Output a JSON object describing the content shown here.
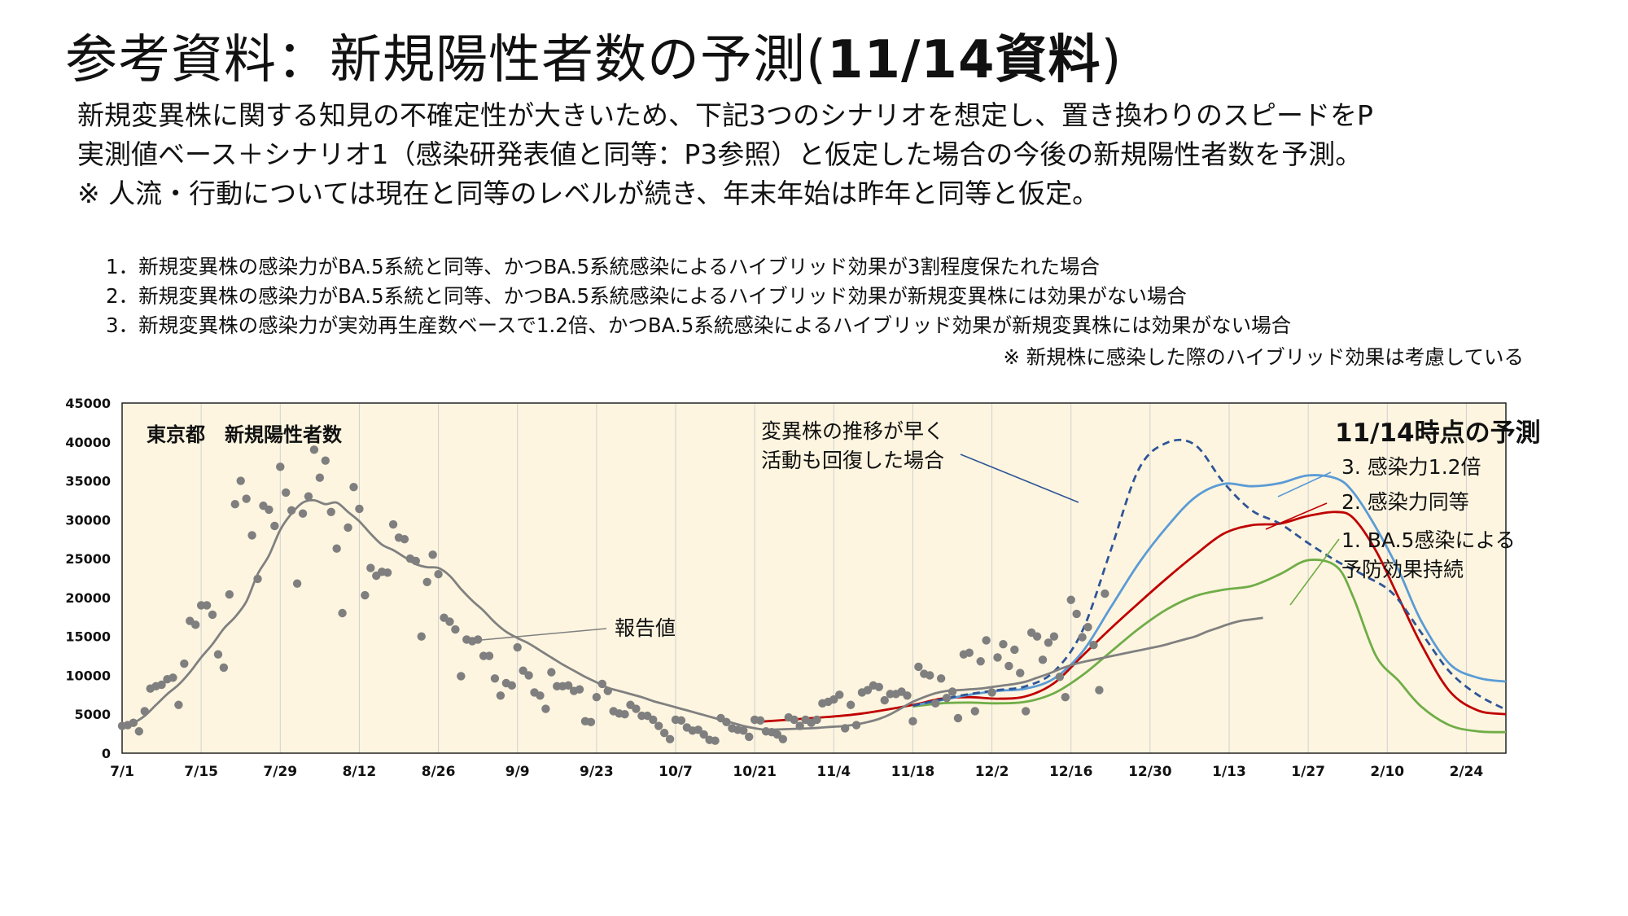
{
  "title_main": "参考資料：新規陽性者数の予測(",
  "title_bold": "11/14資料",
  "title_end": ")",
  "intro_lines": [
    "新規変異株に関する知見の不確定性が大きいため、下記3つのシナリオを想定し、置き換わりのスピードをP",
    "実測値ベース＋シナリオ1（感染研発表値と同等：P3参照）と仮定した場合の今後の新規陽性者数を予測。",
    "※ 人流・行動については現在と同等のレベルが続き、年末年始は昨年と同等と仮定。"
  ],
  "scenarios": [
    "1．新規変異株の感染力がBA.5系統と同等、かつBA.5系統感染によるハイブリッド効果が3割程度保たれた場合",
    "2．新規変異株の感染力がBA.5系統と同等、かつBA.5系統感染によるハイブリッド効果が新規変異株には効果がない場合",
    "3．新規変異株の感染力が実効再生産数ベースで1.2倍、かつBA.5系統感染によるハイブリッド効果が新規変異株には効果がない場合"
  ],
  "scenario_note": "※ 新規株に感染した際のハイブリッド効果は考慮している",
  "colors": {
    "background": "#fdf5e0",
    "reported": "#808080",
    "dots": "#7f7f7f",
    "scenario1": "#70ad47",
    "scenario2": "#c00000",
    "scenario3": "#5b9bd5",
    "dashed": "#2f5597"
  },
  "chart_data": {
    "type": "line",
    "title": "東京都　新規陽性者数",
    "corner_label": "11/14時点の予測",
    "x_tick_labels": [
      "7/1",
      "7/15",
      "7/29",
      "8/12",
      "8/26",
      "9/9",
      "9/23",
      "10/7",
      "10/21",
      "11/4",
      "11/18",
      "12/2",
      "12/16",
      "12/30",
      "1/13",
      "1/27",
      "2/10",
      "2/24"
    ],
    "x_day_range": [
      0,
      245
    ],
    "ylim": [
      0,
      45000
    ],
    "y_ticks": [
      0,
      5000,
      10000,
      15000,
      20000,
      25000,
      30000,
      35000,
      40000,
      45000
    ],
    "grid": "vertical",
    "annotations": {
      "reported": "報告値",
      "dashed_1": "変異株の推移が早く",
      "dashed_2": "活動も回復した場合",
      "s3": "3. 感染力1.2倍",
      "s2": "2. 感染力同等",
      "s1_1": "1. BA.5感染による",
      "s1_2": "予防効果持続"
    },
    "series": [
      {
        "name": "報告値",
        "key": "reported",
        "style": "line",
        "x": [
          0,
          2,
          4,
          6,
          8,
          10,
          12,
          14,
          16,
          18,
          20,
          22,
          24,
          26,
          28,
          30,
          32,
          34,
          36,
          38,
          40,
          42,
          44,
          46,
          48,
          50,
          52,
          54,
          56,
          58,
          60,
          62,
          64,
          66,
          68,
          70,
          72,
          74,
          76,
          78,
          80,
          82,
          84,
          86,
          88,
          90,
          92,
          94,
          96,
          98,
          100,
          102,
          104,
          106,
          108,
          110,
          112,
          114,
          116,
          118,
          120,
          122,
          124,
          126,
          128,
          130,
          132,
          134,
          136,
          138,
          140,
          142,
          144,
          146,
          148,
          150,
          152,
          154,
          156,
          158,
          160,
          162,
          164,
          166,
          168,
          170,
          172,
          174,
          176,
          178,
          180,
          182,
          184,
          186,
          188,
          190,
          192,
          194,
          196,
          198,
          200,
          202
        ],
        "y": [
          3600,
          3900,
          4800,
          6200,
          7600,
          8800,
          10400,
          12300,
          14000,
          16000,
          17500,
          19500,
          23000,
          25400,
          28700,
          30800,
          32200,
          32500,
          32000,
          32200,
          31000,
          29800,
          28200,
          26800,
          26100,
          25200,
          24300,
          23900,
          23800,
          22800,
          21100,
          19600,
          18300,
          16800,
          15600,
          14800,
          14100,
          13200,
          12300,
          11400,
          10600,
          9800,
          9100,
          8400,
          8000,
          7600,
          7200,
          6700,
          6300,
          5900,
          5500,
          5100,
          4700,
          4300,
          3900,
          3500,
          3200,
          3000,
          3050,
          3100,
          3150,
          3200,
          3300,
          3400,
          3500,
          3700,
          4000,
          4400,
          5000,
          5800,
          6600,
          7200,
          7700,
          8000,
          8100,
          8200,
          8300,
          8500,
          8700,
          8900,
          9200,
          9700,
          10200,
          10800,
          11300,
          11700,
          12000,
          12300,
          12600,
          12900,
          13200,
          13500,
          13800,
          14200,
          14600,
          15000,
          15600,
          16100,
          16600,
          17000,
          17200,
          17400
        ]
      },
      {
        "name": "3. 感染力1.2倍",
        "key": "scenario3",
        "style": "line",
        "x": [
          140,
          145,
          150,
          155,
          160,
          165,
          170,
          175,
          180,
          185,
          190,
          195,
          200,
          205,
          210,
          215,
          218,
          222,
          226,
          230,
          235,
          240,
          245
        ],
        "y": [
          6100,
          6800,
          7500,
          8000,
          8300,
          9600,
          13000,
          18700,
          24400,
          29100,
          32900,
          34600,
          34300,
          34700,
          35700,
          35300,
          33500,
          29000,
          23500,
          17000,
          11500,
          9700,
          9200
        ]
      },
      {
        "name": "2. 感染力同等",
        "key": "scenario2",
        "style": "line",
        "x": [
          112,
          120,
          130,
          140,
          145,
          150,
          155,
          160,
          165,
          170,
          175,
          180,
          185,
          190,
          195,
          200,
          205,
          210,
          215,
          218,
          222,
          226,
          230,
          235,
          240,
          245
        ],
        "y": [
          4000,
          4400,
          5000,
          6200,
          7000,
          7200,
          7000,
          7300,
          9000,
          12500,
          16000,
          19300,
          22500,
          25500,
          28200,
          29300,
          29500,
          30500,
          31000,
          30200,
          26000,
          20000,
          14000,
          8000,
          5500,
          5000
        ]
      },
      {
        "name": "1. BA.5感染による予防効果持続",
        "key": "scenario1",
        "style": "line",
        "x": [
          140,
          145,
          150,
          155,
          160,
          165,
          170,
          175,
          180,
          185,
          190,
          195,
          200,
          205,
          210,
          215,
          218,
          222,
          226,
          230,
          235,
          240,
          245
        ],
        "y": [
          6000,
          6400,
          6500,
          6400,
          6600,
          7700,
          10000,
          13000,
          16000,
          18500,
          20200,
          21000,
          21500,
          23000,
          24800,
          24000,
          20000,
          12500,
          9300,
          6000,
          3600,
          2800,
          2700
        ]
      },
      {
        "name": "変異株の推移が早く活動も回復した場合",
        "key": "dashed",
        "style": "dashed",
        "x": [
          140,
          145,
          150,
          155,
          160,
          165,
          170,
          175,
          180,
          185,
          190,
          195,
          200,
          205,
          210,
          215,
          220,
          225,
          230,
          235,
          240,
          245
        ],
        "y": [
          6100,
          6900,
          7600,
          8100,
          8600,
          10500,
          15700,
          26000,
          36500,
          39900,
          39600,
          34800,
          31200,
          29500,
          27000,
          24700,
          22800,
          20500,
          15500,
          10500,
          7500,
          5600
        ]
      },
      {
        "name": "報告値（日次）",
        "key": "dots",
        "style": "scatter",
        "x": [
          0,
          1,
          2,
          3,
          4,
          5,
          6,
          7,
          8,
          9,
          10,
          11,
          12,
          13,
          14,
          15,
          16,
          17,
          18,
          19,
          20,
          21,
          22,
          23,
          24,
          25,
          26,
          27,
          28,
          29,
          30,
          31,
          32,
          33,
          34,
          35,
          36,
          37,
          38,
          39,
          40,
          41,
          42,
          43,
          44,
          45,
          46,
          47,
          48,
          49,
          50,
          51,
          52,
          53,
          54,
          55,
          56,
          57,
          58,
          59,
          60,
          61,
          62,
          63,
          64,
          65,
          66,
          67,
          68,
          69,
          70,
          71,
          72,
          73,
          74,
          75,
          76,
          77,
          78,
          79,
          80,
          81,
          82,
          83,
          84,
          85,
          86,
          87,
          88,
          89,
          90,
          91,
          92,
          93,
          94,
          95,
          96,
          97,
          98,
          99,
          100,
          101,
          102,
          103,
          104,
          105,
          106,
          107,
          108,
          109,
          110,
          111,
          112,
          113,
          114,
          115,
          116,
          117,
          118,
          119,
          120,
          121,
          122,
          123,
          124,
          125,
          126,
          127,
          128,
          129,
          130,
          131,
          132,
          133,
          134,
          135,
          136,
          137,
          138,
          139,
          140,
          141,
          142,
          143,
          144,
          145,
          146,
          147,
          148,
          149,
          150,
          151,
          152,
          153,
          154,
          155,
          156,
          157,
          158,
          159,
          160,
          161,
          162,
          163,
          164,
          165,
          166,
          167,
          168,
          169,
          170,
          171,
          172,
          173,
          174
        ],
        "y": [
          3500,
          3600,
          3900,
          2800,
          5400,
          8300,
          8600,
          8800,
          9500,
          9700,
          6200,
          11500,
          17000,
          16500,
          19000,
          19000,
          17800,
          12700,
          11000,
          20400,
          32000,
          35000,
          32700,
          28000,
          22400,
          31800,
          31300,
          29200,
          36800,
          33500,
          31200,
          21800,
          30800,
          33000,
          39000,
          35400,
          37600,
          31000,
          26300,
          18000,
          29000,
          34200,
          31400,
          20300,
          23800,
          22800,
          23300,
          23200,
          29400,
          27700,
          27500,
          25000,
          24700,
          15000,
          22000,
          25500,
          23000,
          17400,
          16900,
          15900,
          9900,
          14600,
          14400,
          14600,
          12500,
          12500,
          9600,
          7400,
          9000,
          8700,
          13600,
          10600,
          10000,
          7800,
          7400,
          5700,
          10400,
          8600,
          8600,
          8700,
          8000,
          8200,
          4100,
          4000,
          7200,
          8900,
          8000,
          5400,
          5100,
          5000,
          6200,
          5700,
          4800,
          4800,
          4300,
          3500,
          2600,
          1800,
          4300,
          4200,
          3300,
          2900,
          3000,
          2400,
          1700,
          1600,
          4500,
          4000,
          3200,
          3000,
          2900,
          2100,
          4300,
          4200,
          2800,
          2700,
          2400,
          1800,
          4600,
          4300,
          3500,
          4300,
          3900,
          4300,
          6400,
          6600,
          6900,
          7500,
          3200,
          6200,
          3600,
          7800,
          8100,
          8700,
          8500,
          6800,
          7600,
          7600,
          7900,
          7400,
          4100,
          11100,
          10200,
          10000,
          6400,
          9600,
          7100,
          7900,
          4500,
          12700,
          12900,
          5400,
          11800,
          14500,
          7800,
          12300,
          14000,
          11200,
          13300,
          10300,
          5400,
          15500,
          15000,
          12000,
          14200,
          15000,
          9800,
          7200,
          19700,
          17900,
          14900,
          16200,
          13900,
          8100,
          20500
        ]
      }
    ]
  }
}
